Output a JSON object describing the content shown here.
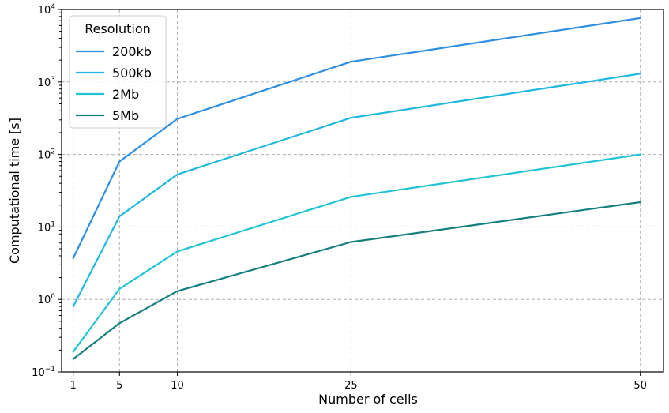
{
  "chart_data": {
    "type": "line",
    "title": "",
    "xlabel": "Number of cells",
    "ylabel": "Computational time [s]",
    "yscale": "log",
    "xlim": [
      0,
      52
    ],
    "ylim": [
      0.1,
      10000
    ],
    "x": [
      1,
      5,
      10,
      25,
      50
    ],
    "xticks": [
      "1",
      "5",
      "10",
      "25",
      "50"
    ],
    "yticks": [
      {
        "value": 0.1,
        "base": "10",
        "exp": "−1"
      },
      {
        "value": 1,
        "base": "10",
        "exp": "0"
      },
      {
        "value": 10,
        "base": "10",
        "exp": "1"
      },
      {
        "value": 100,
        "base": "10",
        "exp": "2"
      },
      {
        "value": 1000,
        "base": "10",
        "exp": "3"
      },
      {
        "value": 10000,
        "base": "10",
        "exp": "4"
      }
    ],
    "grid": true,
    "legend": {
      "title": "Resolution",
      "placement": "top-left"
    },
    "series": [
      {
        "name": "200kb",
        "color": "#2f8fe0",
        "values": [
          3.7,
          80,
          310,
          1900,
          7600
        ]
      },
      {
        "name": "500kb",
        "color": "#1fb8e0",
        "values": [
          0.8,
          14,
          53,
          320,
          1300
        ]
      },
      {
        "name": "2Mb",
        "color": "#22c4d4",
        "values": [
          0.19,
          1.4,
          4.6,
          26,
          100
        ]
      },
      {
        "name": "5Mb",
        "color": "#157f7f",
        "values": [
          0.15,
          0.47,
          1.3,
          6.2,
          22
        ]
      }
    ]
  }
}
